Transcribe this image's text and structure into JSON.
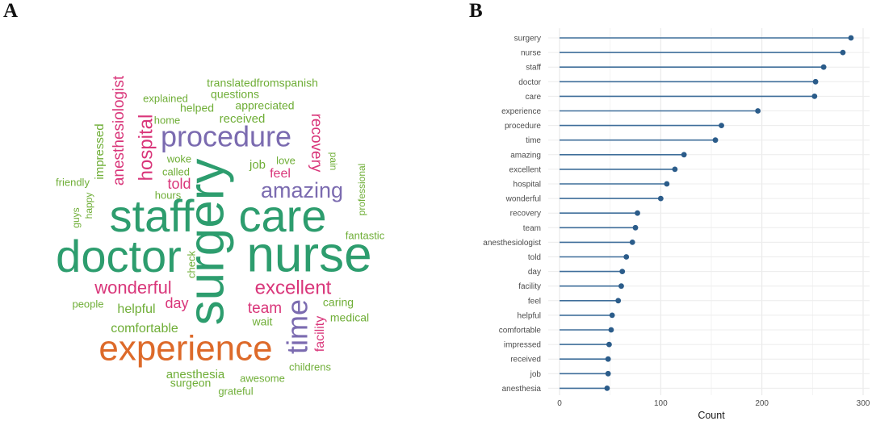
{
  "panels": {
    "a_label": "A",
    "b_label": "B"
  },
  "wordcloud": {
    "colors": {
      "top": "#2d9d6e",
      "orange": "#dd6a2a",
      "purple": "#7b6bb0",
      "magenta": "#d9367a",
      "green": "#6fae37"
    },
    "words": [
      {
        "text": "surgery",
        "color": "top",
        "size": 62,
        "rot": -90
      },
      {
        "text": "nurse",
        "color": "top",
        "size": 62,
        "rot": 0
      },
      {
        "text": "staff",
        "color": "top",
        "size": 56,
        "rot": 0
      },
      {
        "text": "care",
        "color": "top",
        "size": 56,
        "rot": 0
      },
      {
        "text": "doctor",
        "color": "top",
        "size": 56,
        "rot": 0
      },
      {
        "text": "experience",
        "color": "orange",
        "size": 44,
        "rot": 0
      },
      {
        "text": "procedure",
        "color": "purple",
        "size": 36,
        "rot": 0
      },
      {
        "text": "amazing",
        "color": "purple",
        "size": 27,
        "rot": 0
      },
      {
        "text": "time",
        "color": "purple",
        "size": 36,
        "rot": -90
      },
      {
        "text": "excellent",
        "color": "magenta",
        "size": 24,
        "rot": 0
      },
      {
        "text": "hospital",
        "color": "magenta",
        "size": 24,
        "rot": -90
      },
      {
        "text": "wonderful",
        "color": "magenta",
        "size": 22,
        "rot": 0
      },
      {
        "text": "recovery",
        "color": "magenta",
        "size": 19,
        "rot": 90
      },
      {
        "text": "anesthesiologist",
        "color": "magenta",
        "size": 19,
        "rot": -90
      },
      {
        "text": "team",
        "color": "magenta",
        "size": 19,
        "rot": 0
      },
      {
        "text": "told",
        "color": "magenta",
        "size": 18,
        "rot": 0
      },
      {
        "text": "day",
        "color": "magenta",
        "size": 18,
        "rot": 0
      },
      {
        "text": "facility",
        "color": "magenta",
        "size": 16,
        "rot": -90
      },
      {
        "text": "feel",
        "color": "magenta",
        "size": 16,
        "rot": 0
      },
      {
        "text": "helpful",
        "color": "green",
        "size": 16,
        "rot": 0
      },
      {
        "text": "comfortable",
        "color": "green",
        "size": 16,
        "rot": 0
      },
      {
        "text": "impressed",
        "color": "green",
        "size": 15,
        "rot": -90
      },
      {
        "text": "received",
        "color": "green",
        "size": 15,
        "rot": 0
      },
      {
        "text": "job",
        "color": "green",
        "size": 15,
        "rot": 0
      },
      {
        "text": "anesthesia",
        "color": "green",
        "size": 15,
        "rot": 0
      },
      {
        "text": "surgeon",
        "color": "green",
        "size": 14,
        "rot": 0
      },
      {
        "text": "caring",
        "color": "green",
        "size": 14,
        "rot": 0
      },
      {
        "text": "medical",
        "color": "green",
        "size": 14,
        "rot": 0
      },
      {
        "text": "wait",
        "color": "green",
        "size": 14,
        "rot": 0
      },
      {
        "text": "awesome",
        "color": "green",
        "size": 13,
        "rot": 0
      },
      {
        "text": "grateful",
        "color": "green",
        "size": 13,
        "rot": 0
      },
      {
        "text": "childrens",
        "color": "green",
        "size": 13,
        "rot": 0
      },
      {
        "text": "people",
        "color": "green",
        "size": 13,
        "rot": 0
      },
      {
        "text": "fantastic",
        "color": "green",
        "size": 13,
        "rot": 0
      },
      {
        "text": "check",
        "color": "green",
        "size": 13,
        "rot": -90
      },
      {
        "text": "love",
        "color": "green",
        "size": 13,
        "rot": 0
      },
      {
        "text": "pain",
        "color": "green",
        "size": 12,
        "rot": 90
      },
      {
        "text": "professional",
        "color": "green",
        "size": 12,
        "rot": -90
      },
      {
        "text": "woke",
        "color": "green",
        "size": 13,
        "rot": 0
      },
      {
        "text": "called",
        "color": "green",
        "size": 13,
        "rot": 0
      },
      {
        "text": "hours",
        "color": "green",
        "size": 13,
        "rot": 0
      },
      {
        "text": "friendly",
        "color": "green",
        "size": 13,
        "rot": 0
      },
      {
        "text": "happy",
        "color": "green",
        "size": 12,
        "rot": -90
      },
      {
        "text": "guys",
        "color": "green",
        "size": 12,
        "rot": -90
      },
      {
        "text": "home",
        "color": "green",
        "size": 13,
        "rot": 0
      },
      {
        "text": "helped",
        "color": "green",
        "size": 14,
        "rot": 0
      },
      {
        "text": "appreciated",
        "color": "green",
        "size": 14,
        "rot": 0
      },
      {
        "text": "explained",
        "color": "green",
        "size": 13,
        "rot": 0
      },
      {
        "text": "questions",
        "color": "green",
        "size": 14,
        "rot": 0
      },
      {
        "text": "translatedfromspanish",
        "color": "green",
        "size": 14,
        "rot": 0
      }
    ]
  },
  "chart_data": {
    "type": "lollipop",
    "orientation": "horizontal",
    "categories": [
      "surgery",
      "nurse",
      "staff",
      "doctor",
      "care",
      "experience",
      "procedure",
      "time",
      "amazing",
      "excellent",
      "hospital",
      "wonderful",
      "recovery",
      "team",
      "anesthesiologist",
      "told",
      "day",
      "facility",
      "feel",
      "helpful",
      "comfortable",
      "impressed",
      "received",
      "job",
      "anesthesia"
    ],
    "values": [
      288,
      280,
      261,
      253,
      252,
      196,
      160,
      154,
      123,
      114,
      106,
      100,
      77,
      75,
      72,
      66,
      62,
      61,
      58,
      52,
      51,
      49,
      48,
      48,
      47
    ],
    "xlabel": "Count",
    "xlim": [
      0,
      300
    ],
    "xticks": [
      0,
      100,
      200,
      300
    ],
    "xtick_labels": [
      "0",
      "100",
      "200",
      "300"
    ],
    "grid": true,
    "color": "#3f6e9a"
  }
}
